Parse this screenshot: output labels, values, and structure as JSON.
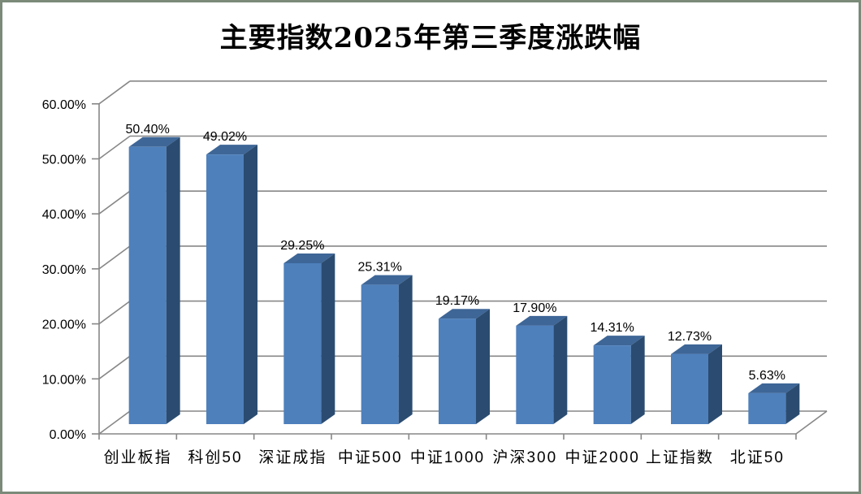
{
  "chart_data": {
    "type": "bar",
    "style": "3d-column",
    "title": "主要指数2025年第三季度涨跌幅",
    "categories": [
      "创业板指",
      "科创50",
      "深证成指",
      "中证500",
      "中证1000",
      "沪深300",
      "中证2000",
      "上证指数",
      "北证50"
    ],
    "values": [
      50.4,
      49.02,
      29.25,
      25.31,
      19.17,
      17.9,
      14.31,
      12.73,
      5.63
    ],
    "data_labels": [
      "50.40%",
      "49.02%",
      "29.25%",
      "25.31%",
      "19.17%",
      "17.90%",
      "14.31%",
      "12.73%",
      "5.63%"
    ],
    "y_tick_labels": [
      "0.00%",
      "10.00%",
      "20.00%",
      "30.00%",
      "40.00%",
      "50.00%",
      "60.00%"
    ],
    "y_tick_values": [
      0,
      10,
      20,
      30,
      40,
      50,
      60
    ],
    "ylim": [
      0,
      60
    ],
    "xlabel": "",
    "ylabel": "",
    "grid": true,
    "legend": "none",
    "colors": {
      "bar_front": "#4e80bc",
      "bar_top": "#3e6697",
      "bar_side": "#2b4c70",
      "gridline": "#878787",
      "axis": "#878787",
      "text": "#000000",
      "frame_border": "#7b8a79",
      "background": "#ffffff"
    }
  }
}
